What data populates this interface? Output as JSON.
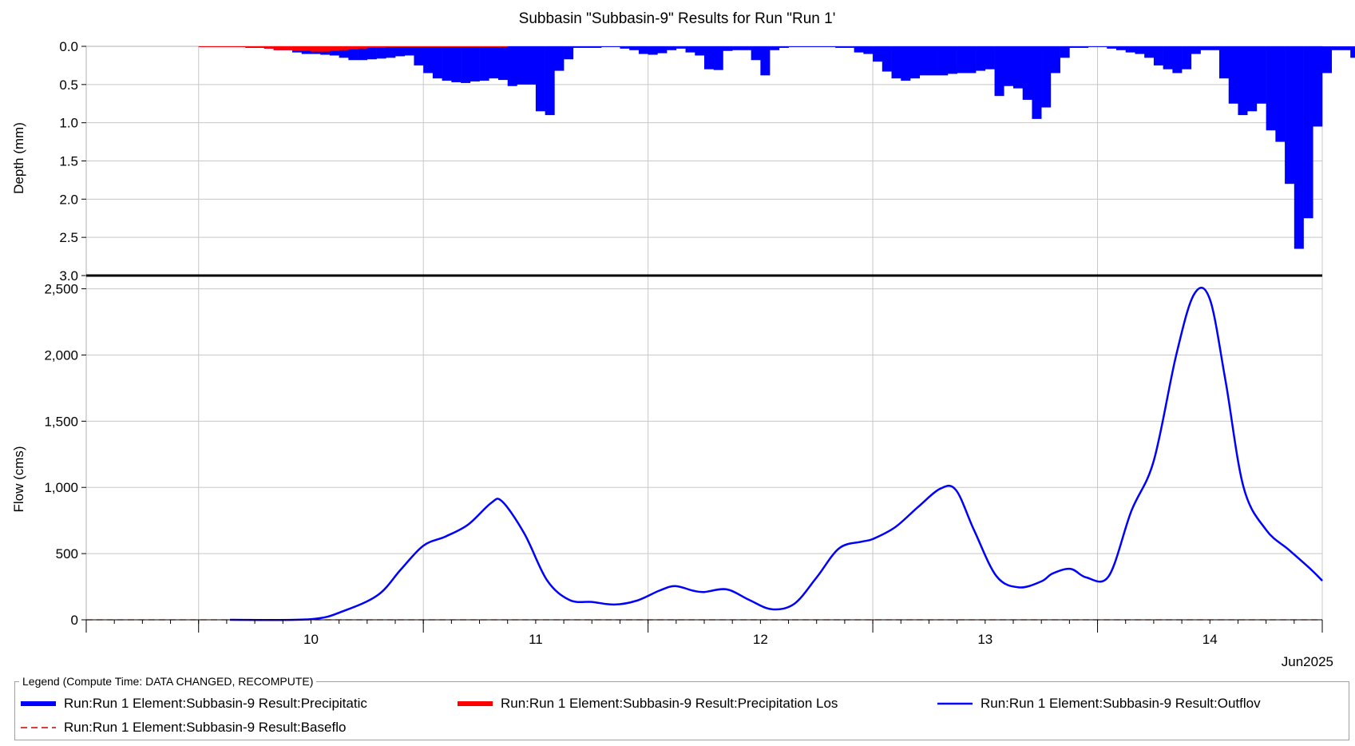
{
  "chart_data": {
    "type": "hydrograph",
    "title": "Subbasin \"Subbasin-9\" Results for Run \"Run 1'",
    "top_panel": {
      "type": "bar",
      "ylabel": "Depth (mm)",
      "ylim": [
        0,
        3.0
      ],
      "inverted": true,
      "yticks": [
        "0.0",
        "0.5",
        "1.0",
        "1.5",
        "2.0",
        "2.5",
        "3.0"
      ],
      "interval_hours": 1,
      "x_start": 9.5,
      "series": [
        {
          "name": "Run:Run 1 Element:Subbasin-9 Result:Precipitation",
          "color": "#0000ff",
          "values": [
            0.01,
            0.01,
            0.01,
            0.01,
            0.01,
            0.02,
            0.02,
            0.03,
            0.05,
            0.05,
            0.08,
            0.1,
            0.1,
            0.11,
            0.12,
            0.15,
            0.18,
            0.18,
            0.17,
            0.16,
            0.15,
            0.13,
            0.12,
            0.25,
            0.35,
            0.42,
            0.45,
            0.47,
            0.48,
            0.46,
            0.45,
            0.42,
            0.44,
            0.52,
            0.5,
            0.5,
            0.85,
            0.9,
            0.32,
            0.17,
            0.02,
            0.02,
            0.02,
            0.01,
            0.01,
            0.03,
            0.05,
            0.1,
            0.11,
            0.09,
            0.05,
            0.03,
            0.08,
            0.12,
            0.3,
            0.31,
            0.06,
            0.05,
            0.05,
            0.18,
            0.38,
            0.05,
            0.02,
            0.01,
            0.01,
            0.01,
            0.01,
            0.01,
            0.02,
            0.02,
            0.08,
            0.1,
            0.2,
            0.33,
            0.42,
            0.45,
            0.42,
            0.38,
            0.38,
            0.38,
            0.36,
            0.35,
            0.35,
            0.32,
            0.3,
            0.65,
            0.52,
            0.55,
            0.7,
            0.95,
            0.8,
            0.35,
            0.15,
            0.02,
            0.02,
            0.01,
            0.01,
            0.03,
            0.05,
            0.08,
            0.1,
            0.15,
            0.25,
            0.3,
            0.35,
            0.3,
            0.1,
            0.05,
            0.05,
            0.42,
            0.75,
            0.9,
            0.85,
            0.75,
            1.1,
            1.25,
            1.8,
            2.65,
            2.25,
            1.05,
            0.35,
            0.05,
            0.05,
            0.15,
            0.2,
            0.22,
            0.35,
            0.05,
            0.02,
            0.02,
            0.02,
            0.1,
            0.05,
            0.45
          ]
        },
        {
          "name": "Run:Run 1 Element:Subbasin-9 Result:Precipitation Loss",
          "color": "#ff0000",
          "values": [
            0.01,
            0.01,
            0.01,
            0.01,
            0.01,
            0.02,
            0.02,
            0.03,
            0.05,
            0.05,
            0.06,
            0.06,
            0.07,
            0.07,
            0.06,
            0.05,
            0.04,
            0.03,
            0.02,
            0.02,
            0.01,
            0.01,
            0.01,
            0.01,
            0.01,
            0.01,
            0.01,
            0.01,
            0.01,
            0.01,
            0.01,
            0.01,
            0.01,
            0.0,
            0.0,
            0.0,
            0.0,
            0.0,
            0.0,
            0.0,
            0.0,
            0.0,
            0.0,
            0.0,
            0.0,
            0.0,
            0.0,
            0.0,
            0.0,
            0.0,
            0.0,
            0.0,
            0.0,
            0.0,
            0.0,
            0.0,
            0.0,
            0.0,
            0.0,
            0.0,
            0.0,
            0.0,
            0.0,
            0.0,
            0.0,
            0.0,
            0.0,
            0.0,
            0.0,
            0.0,
            0.0,
            0.0,
            0.0,
            0.0,
            0.0,
            0.0,
            0.0,
            0.0,
            0.0,
            0.0,
            0.0,
            0.0,
            0.0,
            0.0,
            0.0,
            0.0,
            0.0,
            0.0,
            0.0,
            0.0,
            0.0,
            0.0,
            0.0,
            0.0,
            0.0,
            0.0,
            0.0,
            0.0,
            0.0,
            0.0,
            0.0,
            0.0,
            0.0,
            0.0,
            0.0,
            0.0,
            0.0,
            0.0,
            0.0,
            0.0,
            0.0,
            0.0,
            0.0,
            0.0,
            0.0,
            0.0,
            0.0,
            0.0,
            0.0,
            0.0,
            0.0,
            0.0,
            0.0,
            0.0,
            0.0,
            0.0,
            0.0,
            0.0,
            0.0,
            0.0,
            0.0,
            0.0,
            0.0,
            0.0
          ]
        }
      ]
    },
    "bottom_panel": {
      "type": "line",
      "ylabel": "Flow (cms)",
      "ylim": [
        0,
        2600
      ],
      "yticks": [
        "0",
        "500",
        "1,000",
        "1,500",
        "2,000",
        "2,500"
      ],
      "ytick_values": [
        0,
        500,
        1000,
        1500,
        2000,
        2500
      ],
      "series": [
        {
          "name": "Run:Run 1 Element:Subbasin-9 Result:Outflow",
          "color": "#0000ff",
          "dash": "solid",
          "x": [
            9.64,
            10.0,
            10.15,
            10.3,
            10.4,
            10.5,
            10.6,
            10.7,
            10.8,
            10.85,
            10.95,
            11.05,
            11.15,
            11.25,
            11.35,
            11.45,
            11.55,
            11.62,
            11.7,
            11.75,
            11.85,
            11.95,
            12.05,
            12.15,
            12.25,
            12.35,
            12.45,
            12.5,
            12.6,
            12.7,
            12.8,
            12.87,
            12.95,
            13.05,
            13.15,
            13.25,
            13.3,
            13.38,
            13.45,
            13.55,
            13.65,
            13.75,
            13.85,
            13.93,
            14.0,
            14.07,
            14.15,
            14.25,
            14.35,
            14.45,
            14.5
          ],
          "y": [
            0,
            5,
            70,
            190,
            380,
            560,
            630,
            720,
            880,
            895,
            650,
            300,
            150,
            135,
            115,
            145,
            220,
            255,
            220,
            210,
            230,
            150,
            80,
            120,
            320,
            540,
            590,
            610,
            700,
            850,
            990,
            980,
            680,
            330,
            245,
            290,
            350,
            385,
            320,
            330,
            820,
            1200,
            2000,
            2460,
            2420,
            1800,
            1000,
            680,
            530,
            380,
            295
          ]
        },
        {
          "name": "Run:Run 1 Element:Subbasin-9 Result:Baseflow",
          "color": "#cc0000",
          "dash": "dashed",
          "x": [
            9.0,
            14.5
          ],
          "y": [
            0,
            0
          ]
        }
      ]
    },
    "xaxis": {
      "categories": [
        "10",
        "11",
        "12",
        "13",
        "14"
      ],
      "category_positions": [
        10.0,
        11.0,
        12.0,
        13.0,
        14.0
      ],
      "gridlines_at": [
        9.5,
        10.5,
        11.5,
        12.5,
        13.5,
        14.5
      ],
      "range": [
        9.0,
        14.5
      ],
      "footer_label": "Jun2025"
    },
    "legend": {
      "title": "Legend (Compute Time: DATA CHANGED, RECOMPUTE)",
      "placement": "bottom",
      "items": [
        {
          "label": "Run:Run 1 Element:Subbasin-9 Result:Precipitatic",
          "color": "#0000ff",
          "style": "thick"
        },
        {
          "label": "Run:Run 1 Element:Subbasin-9 Result:Precipitation Los",
          "color": "#ff0000",
          "style": "thick"
        },
        {
          "label": "Run:Run 1 Element:Subbasin-9 Result:Outflov",
          "color": "#0000ff",
          "style": "solid"
        },
        {
          "label": "Run:Run 1 Element:Subbasin-9 Result:Baseflo",
          "color": "#cc0000",
          "style": "dashed"
        }
      ]
    },
    "grid": true
  }
}
